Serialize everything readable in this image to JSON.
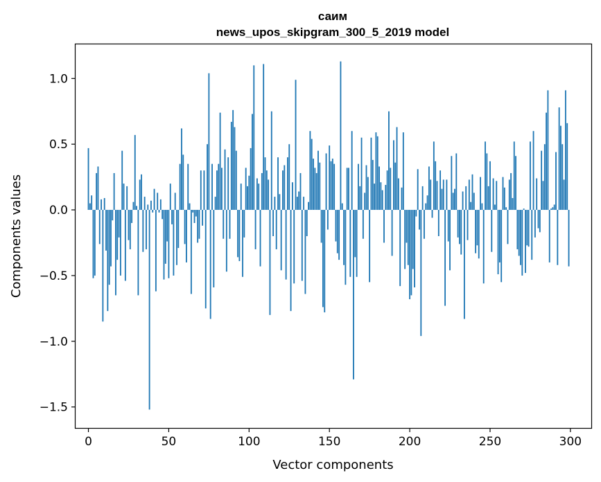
{
  "chart_data": {
    "type": "bar",
    "title": "саим",
    "subtitle": "news_upos_skipgram_300_5_2019 model",
    "xlabel": "Vector components",
    "ylabel": "Components values",
    "xlim": [
      -8,
      313
    ],
    "ylim": [
      -1.66,
      1.26
    ],
    "x_ticks": [
      0,
      50,
      100,
      150,
      200,
      250,
      300
    ],
    "x_tick_labels": [
      "0",
      "50",
      "100",
      "150",
      "200",
      "250",
      "300"
    ],
    "y_ticks": [
      -1.5,
      -1.0,
      -0.5,
      0.0,
      0.5,
      1.0
    ],
    "y_tick_labels": [
      "−1.5",
      "−1.0",
      "−0.5",
      "0.0",
      "0.5",
      "1.0"
    ],
    "bar_color": "#1f77b4",
    "values": [
      0.47,
      0.05,
      0.11,
      -0.52,
      -0.5,
      0.28,
      0.33,
      -0.26,
      0.08,
      -0.85,
      0.09,
      -0.31,
      -0.77,
      -0.57,
      -0.43,
      -0.08,
      0.28,
      -0.65,
      -0.38,
      -0.21,
      -0.5,
      0.45,
      0.2,
      -0.54,
      0.18,
      -0.23,
      -0.3,
      -0.1,
      0.06,
      0.57,
      0.03,
      -0.65,
      0.23,
      0.27,
      -0.32,
      0.1,
      -0.3,
      0.04,
      -1.52,
      0.07,
      -0.02,
      0.16,
      -0.62,
      0.13,
      -0.02,
      0.08,
      -0.07,
      -0.53,
      -0.41,
      -0.24,
      -0.52,
      0.2,
      -0.11,
      -0.5,
      0.13,
      -0.42,
      -0.29,
      0.35,
      0.62,
      0.42,
      -0.26,
      -0.4,
      0.35,
      0.05,
      -0.64,
      -0.02,
      -0.1,
      -0.05,
      -0.25,
      -0.22,
      0.3,
      -0.12,
      0.3,
      -0.75,
      0.5,
      1.04,
      -0.83,
      0.35,
      -0.59,
      0.1,
      0.3,
      0.35,
      0.74,
      0.32,
      -0.22,
      0.46,
      -0.47,
      0.4,
      -0.22,
      0.67,
      0.76,
      0.63,
      0.45,
      -0.36,
      -0.39,
      0.2,
      -0.51,
      -0.21,
      0.32,
      0.18,
      0.26,
      0.47,
      0.73,
      1.1,
      -0.3,
      0.24,
      0.2,
      -0.43,
      0.28,
      1.11,
      0.4,
      0.3,
      0.23,
      -0.8,
      0.75,
      -0.2,
      0.1,
      -0.3,
      0.4,
      0.12,
      -0.46,
      0.3,
      0.34,
      -0.53,
      0.4,
      0.5,
      -0.77,
      0.21,
      -0.56,
      0.99,
      0.1,
      0.14,
      0.28,
      -0.54,
      0.1,
      -0.64,
      -0.2,
      0.06,
      0.6,
      0.54,
      0.39,
      0.32,
      0.28,
      0.45,
      0.36,
      -0.25,
      -0.74,
      -0.78,
      0.43,
      -0.15,
      0.49,
      0.37,
      0.39,
      0.35,
      -0.24,
      -0.33,
      -0.38,
      1.13,
      0.05,
      -0.42,
      -0.57,
      0.32,
      0.32,
      -0.51,
      0.6,
      -1.29,
      -0.36,
      -0.51,
      0.35,
      0.18,
      0.55,
      -0.22,
      0.13,
      0.34,
      0.25,
      -0.55,
      0.55,
      0.38,
      0.2,
      0.59,
      0.56,
      0.33,
      0.21,
      0.15,
      -0.25,
      0.19,
      0.3,
      0.75,
      0.32,
      -0.35,
      0.53,
      0.36,
      0.63,
      0.24,
      -0.58,
      0.17,
      0.59,
      -0.45,
      -0.25,
      -0.42,
      -0.68,
      -0.65,
      -0.45,
      -0.59,
      -0.05,
      0.31,
      -0.15,
      -0.96,
      0.18,
      -0.22,
      0.05,
      0.11,
      0.33,
      0.23,
      -0.06,
      0.52,
      0.37,
      0.22,
      -0.2,
      0.3,
      0.16,
      0.23,
      -0.73,
      0.23,
      -0.24,
      -0.46,
      0.41,
      0.13,
      0.16,
      0.43,
      -0.21,
      -0.26,
      -0.34,
      0.14,
      -0.83,
      0.18,
      -0.23,
      0.23,
      0.06,
      0.27,
      0.13,
      -0.33,
      -0.27,
      -0.37,
      0.25,
      0.05,
      -0.56,
      0.52,
      0.43,
      0.18,
      0.37,
      -0.32,
      0.24,
      0.04,
      0.22,
      -0.49,
      -0.4,
      -0.55,
      0.25,
      0.17,
      0.02,
      -0.26,
      0.23,
      0.28,
      0.09,
      0.52,
      0.41,
      -0.3,
      -0.35,
      -0.42,
      -0.5,
      0.01,
      -0.48,
      -0.27,
      -0.28,
      0.52,
      -0.38,
      0.6,
      -0.21,
      0.24,
      -0.14,
      -0.17,
      0.45,
      0.22,
      0.5,
      0.74,
      0.91,
      -0.4,
      0.01,
      0.02,
      0.04,
      0.44,
      -0.42,
      0.78,
      0.64,
      0.5,
      0.23,
      0.91,
      0.66,
      -0.43
    ]
  }
}
